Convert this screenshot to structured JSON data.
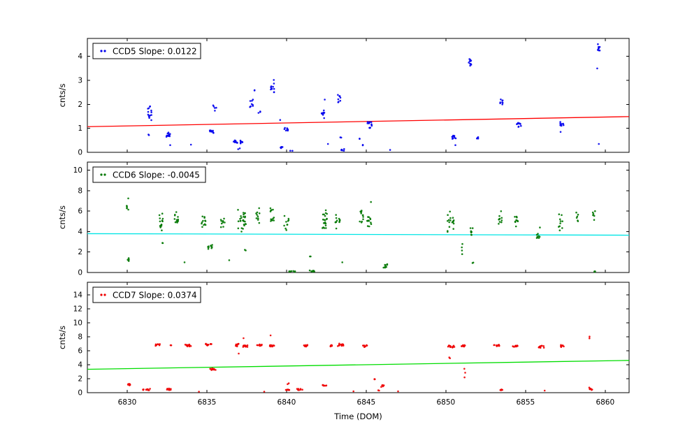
{
  "figure": {
    "background": "#ffffff",
    "xlabel": "Time (DOM)",
    "x_ticks": [
      6830,
      6835,
      6840,
      6845,
      6850,
      6855,
      6860
    ],
    "xlim": [
      6827.5,
      6861.5
    ]
  },
  "chart_data": [
    {
      "type": "scatter",
      "name": "CCD5",
      "legend": "CCD5 Slope: 0.0122",
      "slope": 0.0122,
      "point_color": "#0000ee",
      "ylabel": "cnts/s",
      "ylim": [
        0,
        4.75
      ],
      "yticks": [
        0,
        1,
        2,
        3,
        4
      ],
      "trend": {
        "color": "#ff0000",
        "y0": 1.07,
        "y1": 1.49
      },
      "clusters_format": "[x_center, y_center, n_points, x_spread, y_spread]",
      "clusters": [
        [
          6831.4,
          1.62,
          14,
          0.12,
          0.33
        ],
        [
          6831.35,
          0.75,
          2,
          0.04,
          0.04
        ],
        [
          6832.55,
          0.72,
          12,
          0.16,
          0.12
        ],
        [
          6832.7,
          0.3,
          1,
          0,
          0
        ],
        [
          6834.0,
          0.32,
          1,
          0,
          0
        ],
        [
          6835.3,
          0.86,
          10,
          0.12,
          0.09
        ],
        [
          6835.5,
          1.85,
          5,
          0.12,
          0.35
        ],
        [
          6836.8,
          0.45,
          8,
          0.12,
          0.09
        ],
        [
          6837.2,
          0.42,
          8,
          0.12,
          0.09
        ],
        [
          6837.0,
          0.15,
          2,
          0.08,
          0.04
        ],
        [
          6837.8,
          2.05,
          8,
          0.1,
          0.26
        ],
        [
          6838.0,
          2.6,
          2,
          0.04,
          0.05
        ],
        [
          6838.3,
          1.68,
          3,
          0.07,
          0.1
        ],
        [
          6839.1,
          2.62,
          10,
          0.12,
          0.3
        ],
        [
          6839.2,
          3.02,
          1,
          0,
          0
        ],
        [
          6839.7,
          0.2,
          5,
          0.08,
          0.14
        ],
        [
          6839.6,
          1.35,
          1,
          0,
          0
        ],
        [
          6840.0,
          0.95,
          10,
          0.15,
          0.1
        ],
        [
          6840.3,
          0.06,
          2,
          0.08,
          0.03
        ],
        [
          6842.3,
          1.65,
          9,
          0.1,
          0.25
        ],
        [
          6842.4,
          2.2,
          1,
          0,
          0
        ],
        [
          6842.6,
          0.35,
          1,
          0,
          0
        ],
        [
          6843.3,
          2.25,
          8,
          0.1,
          0.25
        ],
        [
          6843.5,
          0.12,
          6,
          0.12,
          0.07
        ],
        [
          6843.4,
          0.6,
          2,
          0.04,
          0.04
        ],
        [
          6844.6,
          0.55,
          2,
          0.04,
          0.04
        ],
        [
          6844.8,
          0.3,
          2,
          0.04,
          0.04
        ],
        [
          6845.2,
          1.15,
          12,
          0.15,
          0.18
        ],
        [
          6846.5,
          0.1,
          1,
          0,
          0
        ],
        [
          6850.5,
          0.65,
          10,
          0.12,
          0.1
        ],
        [
          6850.6,
          0.3,
          1,
          0,
          0
        ],
        [
          6851.5,
          3.8,
          10,
          0.1,
          0.24
        ],
        [
          6852.0,
          0.6,
          4,
          0.07,
          0.06
        ],
        [
          6853.5,
          2.1,
          8,
          0.1,
          0.22
        ],
        [
          6854.6,
          1.15,
          10,
          0.15,
          0.12
        ],
        [
          6857.3,
          1.2,
          10,
          0.12,
          0.15
        ],
        [
          6857.2,
          0.85,
          1,
          0,
          0
        ],
        [
          6859.6,
          4.35,
          8,
          0.08,
          0.18
        ],
        [
          6859.5,
          3.5,
          1,
          0,
          0
        ],
        [
          6859.6,
          0.35,
          1,
          0,
          0
        ]
      ]
    },
    {
      "type": "scatter",
      "name": "CCD6",
      "legend": "CCD6 Slope: -0.0045",
      "slope": -0.0045,
      "point_color": "#007700",
      "ylabel": "cnts/s",
      "ylim": [
        0,
        10.8
      ],
      "yticks": [
        0,
        2,
        4,
        6,
        8,
        10
      ],
      "trend": {
        "color": "#00e5e5",
        "y0": 3.8,
        "y1": 3.65
      },
      "clusters_format": "[x_center, y_center, n_points, x_spread, y_spread]",
      "clusters": [
        [
          6830.0,
          6.5,
          6,
          0.07,
          1.3
        ],
        [
          6830.05,
          1.3,
          5,
          0.06,
          0.25
        ],
        [
          6832.1,
          5.0,
          15,
          0.15,
          1.0
        ],
        [
          6832.2,
          2.9,
          2,
          0.05,
          0.2
        ],
        [
          6833.1,
          5.2,
          12,
          0.15,
          0.9
        ],
        [
          6833.6,
          1.0,
          1,
          0,
          0
        ],
        [
          6834.8,
          5.0,
          12,
          0.15,
          0.9
        ],
        [
          6835.2,
          2.5,
          9,
          0.15,
          0.35
        ],
        [
          6836.0,
          5.0,
          10,
          0.12,
          0.8
        ],
        [
          6836.4,
          1.2,
          1,
          0,
          0
        ],
        [
          6837.2,
          5.0,
          26,
          0.25,
          1.5
        ],
        [
          6837.4,
          2.0,
          2,
          0.04,
          0.25
        ],
        [
          6838.2,
          5.5,
          10,
          0.12,
          0.9
        ],
        [
          6839.1,
          5.4,
          12,
          0.12,
          1.1
        ],
        [
          6840.0,
          5.0,
          10,
          0.15,
          0.9
        ],
        [
          6840.3,
          0.1,
          8,
          0.25,
          0.07
        ],
        [
          6841.6,
          0.15,
          6,
          0.15,
          0.11
        ],
        [
          6841.5,
          1.5,
          2,
          0.04,
          0.3
        ],
        [
          6842.4,
          5.2,
          20,
          0.15,
          1.4
        ],
        [
          6843.2,
          5.0,
          12,
          0.15,
          1.0
        ],
        [
          6843.5,
          1.0,
          1,
          0,
          0
        ],
        [
          6844.7,
          5.6,
          12,
          0.12,
          1.1
        ],
        [
          6845.2,
          5.0,
          12,
          0.15,
          0.9
        ],
        [
          6845.3,
          6.9,
          1,
          0,
          0
        ],
        [
          6846.2,
          0.6,
          8,
          0.12,
          0.3
        ],
        [
          6850.3,
          5.0,
          18,
          0.2,
          1.1
        ],
        [
          6851.0,
          2.2,
          4,
          0.05,
          0.8
        ],
        [
          6851.6,
          3.9,
          8,
          0.1,
          0.6
        ],
        [
          6851.7,
          0.9,
          2,
          0.04,
          0.15
        ],
        [
          6853.4,
          5.2,
          10,
          0.12,
          1.0
        ],
        [
          6854.4,
          4.9,
          10,
          0.12,
          0.8
        ],
        [
          6855.8,
          3.55,
          8,
          0.1,
          0.3
        ],
        [
          6855.9,
          4.4,
          1,
          0,
          0
        ],
        [
          6857.2,
          5.0,
          10,
          0.12,
          1.1
        ],
        [
          6858.2,
          5.5,
          6,
          0.1,
          0.9
        ],
        [
          6859.3,
          5.8,
          6,
          0.08,
          0.8
        ],
        [
          6859.3,
          0.08,
          4,
          0.1,
          0.05
        ]
      ]
    },
    {
      "type": "scatter",
      "name": "CCD7",
      "legend": "CCD7 Slope: 0.0374",
      "slope": 0.0374,
      "point_color": "#ee0000",
      "ylabel": "cnts/s",
      "ylim": [
        0,
        15.8
      ],
      "yticks": [
        0,
        2,
        4,
        6,
        8,
        10,
        12,
        14
      ],
      "trend": {
        "color": "#00dd00",
        "y0": 3.35,
        "y1": 4.62
      },
      "clusters_format": "[x_center, y_center, n_points, x_spread, y_spread]",
      "clusters": [
        [
          6830.1,
          1.15,
          8,
          0.12,
          0.15
        ],
        [
          6831.2,
          0.45,
          12,
          0.3,
          0.12
        ],
        [
          6831.9,
          6.85,
          10,
          0.15,
          0.2
        ],
        [
          6832.6,
          0.5,
          8,
          0.15,
          0.15
        ],
        [
          6832.75,
          6.8,
          2,
          0.04,
          0.1
        ],
        [
          6833.8,
          6.75,
          12,
          0.2,
          0.2
        ],
        [
          6835.1,
          6.9,
          12,
          0.2,
          0.2
        ],
        [
          6835.4,
          3.35,
          10,
          0.2,
          0.18
        ],
        [
          6836.9,
          6.8,
          10,
          0.15,
          0.25
        ],
        [
          6837.4,
          6.7,
          10,
          0.15,
          0.3
        ],
        [
          6837.3,
          7.8,
          1,
          0,
          0
        ],
        [
          6837.0,
          5.6,
          1,
          0,
          0
        ],
        [
          6838.3,
          6.8,
          10,
          0.15,
          0.2
        ],
        [
          6839.1,
          6.75,
          10,
          0.15,
          0.2
        ],
        [
          6839.0,
          8.2,
          1,
          0,
          0
        ],
        [
          6840.1,
          0.4,
          8,
          0.2,
          0.15
        ],
        [
          6840.1,
          1.3,
          2,
          0.04,
          0.1
        ],
        [
          6840.8,
          0.5,
          8,
          0.2,
          0.18
        ],
        [
          6841.2,
          6.7,
          8,
          0.12,
          0.2
        ],
        [
          6842.4,
          1.05,
          8,
          0.15,
          0.15
        ],
        [
          6842.8,
          6.75,
          8,
          0.12,
          0.2
        ],
        [
          6843.4,
          6.85,
          12,
          0.2,
          0.25
        ],
        [
          6844.9,
          6.7,
          10,
          0.15,
          0.2
        ],
        [
          6845.5,
          1.95,
          3,
          0.05,
          0.15
        ],
        [
          6846.0,
          1.0,
          6,
          0.12,
          0.2
        ],
        [
          6845.8,
          0.3,
          2,
          0.06,
          0.08
        ],
        [
          6850.3,
          6.65,
          14,
          0.25,
          0.2
        ],
        [
          6850.2,
          5.0,
          2,
          0.08,
          0.4
        ],
        [
          6851.1,
          6.7,
          8,
          0.12,
          0.2
        ],
        [
          6851.2,
          3.0,
          3,
          0.04,
          1.5
        ],
        [
          6853.2,
          6.75,
          12,
          0.2,
          0.2
        ],
        [
          6853.4,
          0.45,
          8,
          0.15,
          0.15
        ],
        [
          6854.4,
          6.65,
          12,
          0.2,
          0.2
        ],
        [
          6856.0,
          6.55,
          10,
          0.18,
          0.2
        ],
        [
          6856.2,
          0.3,
          1,
          0,
          0
        ],
        [
          6857.3,
          6.7,
          8,
          0.12,
          0.18
        ],
        [
          6859.0,
          7.9,
          2,
          0.04,
          0.4
        ],
        [
          6859.1,
          0.55,
          8,
          0.12,
          0.25
        ],
        [
          6834.5,
          0.15,
          1,
          0,
          0
        ],
        [
          6838.6,
          0.15,
          1,
          0,
          0
        ],
        [
          6844.2,
          0.2,
          1,
          0,
          0
        ],
        [
          6847.0,
          0.2,
          1,
          0,
          0
        ]
      ]
    }
  ]
}
